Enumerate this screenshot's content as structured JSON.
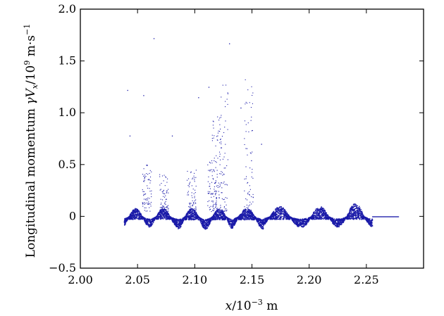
{
  "chart_data": {
    "type": "scatter",
    "xlabel": {
      "var": "x",
      "rest": "/10",
      "exp": "−3",
      "unit": " m"
    },
    "ylabel": {
      "prefix": "Longitudinal momentum ",
      "var": "γV",
      "sub": "x",
      "rest": "/10",
      "exp": "9",
      "unit": " m·s",
      "unit_exp": "−1"
    },
    "xlim": [
      2.0,
      2.3
    ],
    "ylim": [
      -0.5,
      2.0
    ],
    "x_ticks": [
      2.0,
      2.05,
      2.1,
      2.15,
      2.2,
      2.25
    ],
    "x_tick_labels": [
      "2.00",
      "2.05",
      "2.10",
      "2.15",
      "2.20",
      "2.25"
    ],
    "y_ticks": [
      -0.5,
      0,
      0.5,
      1.0,
      1.5,
      2.0
    ],
    "y_tick_labels": [
      "−0.5",
      "0",
      "0.5",
      "1.0",
      "1.5",
      "2.0"
    ],
    "grid": false,
    "point_color": "#1a1aa8",
    "series": [
      {
        "values_description": "phase-space particle distribution",
        "x_range": [
          2.038,
          2.278
        ],
        "oscillation_peaks_x": [
          2.048,
          2.072,
          2.097,
          2.121,
          2.145,
          2.174,
          2.209,
          2.24
        ],
        "peak_heights": [
          0.08,
          0.08,
          0.08,
          0.08,
          0.08,
          0.1,
          0.1,
          0.13
        ],
        "trough_values": [
          -0.1,
          -0.1,
          -0.12,
          -0.12,
          -0.12,
          -0.1,
          -0.1,
          -0.1
        ],
        "spike_tops": [
          0.5,
          0.42,
          0.45,
          0.55,
          1.0,
          1.37,
          1.33
        ],
        "spike_x": [
          2.058,
          2.073,
          2.097,
          2.115,
          2.119,
          2.125,
          2.147
        ],
        "tail_value": 0.0,
        "tail_range": [
          2.255,
          2.278
        ]
      }
    ]
  }
}
